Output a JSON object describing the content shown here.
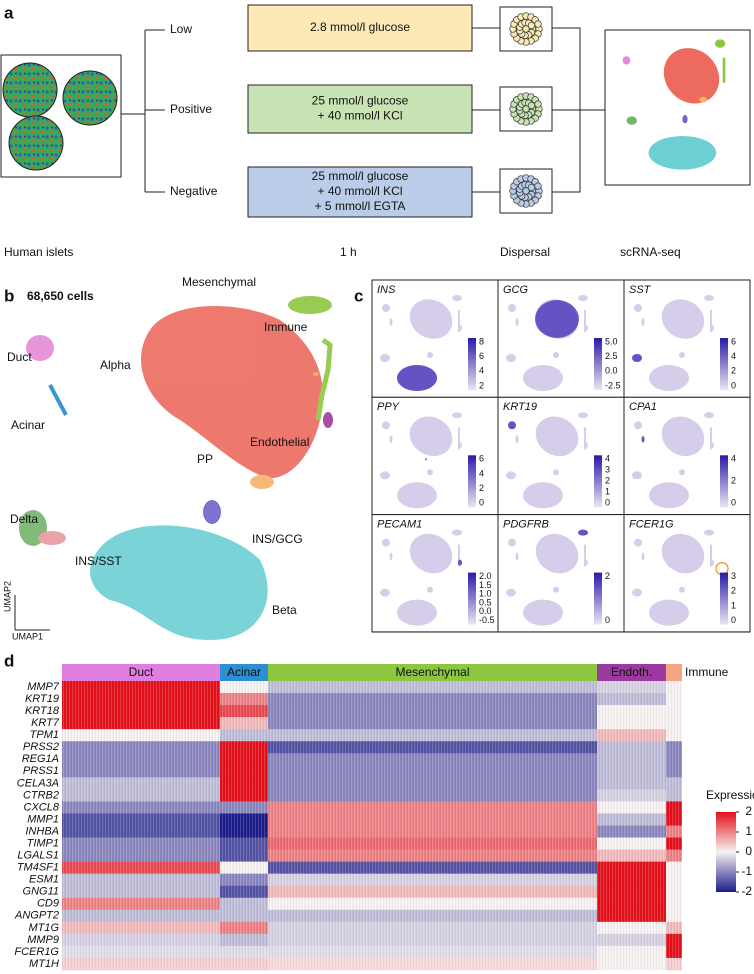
{
  "panel_a": {
    "label": "a",
    "conditions": [
      "Low",
      "Positive",
      "Negative"
    ],
    "treatments": [
      [
        "2.8 mmol/l glucose"
      ],
      [
        "25 mmol/l glucose",
        "+ 40 mmol/l KCl"
      ],
      [
        "25 mmol/l glucose",
        "+ 40 mmol/l KCl",
        "+ 5 mmol/l EGTA"
      ]
    ],
    "treatment_colors": [
      "#fde9b5",
      "#c9e3b4",
      "#b9cce8"
    ],
    "steps": [
      "Human islets",
      "1 h",
      "Dispersal",
      "scRNA-seq"
    ]
  },
  "panel_b": {
    "label": "b",
    "cell_count": "68,650 cells",
    "clusters": [
      {
        "name": "Mesenchymal",
        "color": "#8dc63f"
      },
      {
        "name": "Immune",
        "color": "#f4a261"
      },
      {
        "name": "Alpha",
        "color": "#ec6a5e"
      },
      {
        "name": "Duct",
        "color": "#e48ad8"
      },
      {
        "name": "Acinar",
        "color": "#2a8bc9"
      },
      {
        "name": "PP",
        "color": "#f6b26b"
      },
      {
        "name": "Endothelial",
        "color": "#a23a9e"
      },
      {
        "name": "INS/GCG",
        "color": "#7066cc"
      },
      {
        "name": "Delta",
        "color": "#74b46c"
      },
      {
        "name": "INS/SST",
        "color": "#e99aa2"
      },
      {
        "name": "Beta",
        "color": "#6ccfd3"
      }
    ],
    "axes": [
      "UMAP2",
      "UMAP1"
    ]
  },
  "panel_c": {
    "label": "c",
    "genes": [
      {
        "name": "INS",
        "scale": [
          "8",
          "6",
          "4",
          "2"
        ]
      },
      {
        "name": "GCG",
        "scale": [
          "5.0",
          "2.5",
          "0.0",
          "-2.5"
        ]
      },
      {
        "name": "SST",
        "scale": [
          "6",
          "4",
          "2",
          "0"
        ]
      },
      {
        "name": "PPY",
        "scale": [
          "6",
          "4",
          "2",
          "0"
        ]
      },
      {
        "name": "KRT19",
        "scale": [
          "4",
          "3",
          "2",
          "1",
          "0"
        ]
      },
      {
        "name": "CPA1",
        "scale": [
          "4",
          "2",
          "0"
        ]
      },
      {
        "name": "PECAM1",
        "scale": [
          "2.0",
          "1.5",
          "1.0",
          "0.5",
          "0.0",
          "-0.5"
        ]
      },
      {
        "name": "PDGFRB",
        "scale": [
          "2",
          "0"
        ]
      },
      {
        "name": "FCER1G",
        "scale": [
          "3",
          "2",
          "1",
          "0"
        ]
      }
    ]
  },
  "panel_d": {
    "label": "d",
    "groups": [
      {
        "name": "Duct",
        "color": "#e07fe0"
      },
      {
        "name": "Acinar",
        "color": "#2c8fd1"
      },
      {
        "name": "Mesenchymal",
        "color": "#8dc63f"
      },
      {
        "name": "Endoth.",
        "color": "#9b3aa0"
      },
      {
        "name": "Immune",
        "color": "#f4a582"
      }
    ],
    "genes": [
      "MMP7",
      "KRT19",
      "KRT18",
      "KRT7",
      "TPM1",
      "PRSS2",
      "REG1A",
      "PRSS1",
      "CELA3A",
      "CTRB2",
      "CXCL8",
      "MMP1",
      "INHBA",
      "TIMP1",
      "LGALS1",
      "TM4SF1",
      "ESM1",
      "GNG11",
      "CD9",
      "ANGPT2",
      "MT1G",
      "MMP9",
      "FCER1G",
      "MT1H"
    ],
    "values": [
      [
        2,
        0,
        -0.5,
        -0.3,
        0
      ],
      [
        2,
        1,
        -1,
        -0.5,
        0
      ],
      [
        2,
        1.5,
        -1,
        0,
        0
      ],
      [
        2,
        0.5,
        -1,
        0,
        0
      ],
      [
        0,
        -0.5,
        -0.5,
        0.5,
        0
      ],
      [
        -1,
        2,
        -1.5,
        -0.5,
        -1
      ],
      [
        -1,
        2,
        -1,
        -0.5,
        -1
      ],
      [
        -1,
        2,
        -1,
        -0.5,
        -1
      ],
      [
        -0.5,
        2,
        -1,
        -0.5,
        -0.5
      ],
      [
        -0.5,
        2,
        -1,
        -0.3,
        -0.5
      ],
      [
        -1,
        -1,
        1,
        0,
        2
      ],
      [
        -1.5,
        -2,
        1,
        -0.5,
        2
      ],
      [
        -1.5,
        -2,
        1,
        -1,
        1
      ],
      [
        -1,
        -1.5,
        1.2,
        0,
        2
      ],
      [
        -1,
        -1.5,
        1,
        0.5,
        1
      ],
      [
        1.5,
        0,
        -1.5,
        2,
        0
      ],
      [
        -0.5,
        -1,
        -0.3,
        2,
        0
      ],
      [
        -0.5,
        -1.5,
        0.5,
        2,
        0
      ],
      [
        1,
        -0.5,
        0,
        2,
        0
      ],
      [
        -0.5,
        -0.5,
        -0.5,
        2,
        0
      ],
      [
        0.5,
        1,
        -0.3,
        0,
        0.5
      ],
      [
        -0.3,
        -0.5,
        -0.3,
        -0.3,
        2
      ],
      [
        -0.2,
        -0.2,
        -0.2,
        0,
        2
      ],
      [
        0.3,
        0.3,
        0.2,
        0,
        0.3
      ]
    ],
    "legend": {
      "title": "Expression",
      "ticks": [
        2,
        1,
        0,
        -1,
        -2
      ]
    }
  }
}
